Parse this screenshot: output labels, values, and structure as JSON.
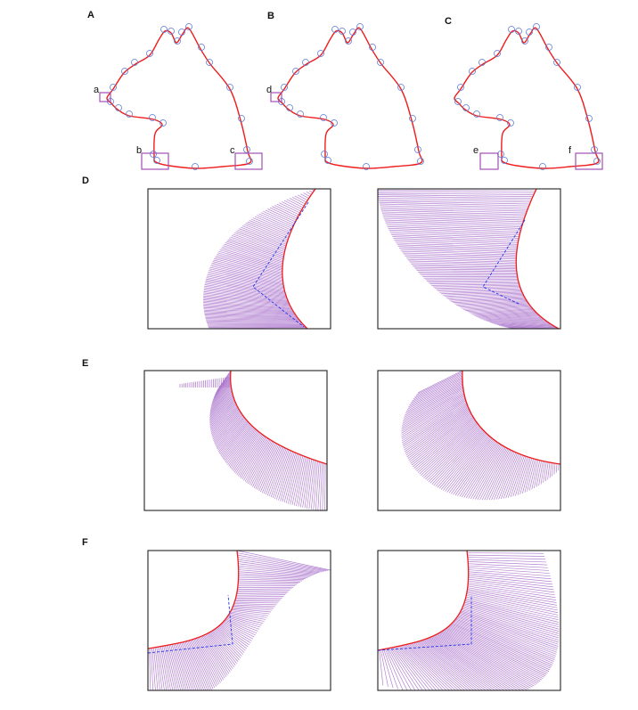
{
  "panel_labels": {
    "A": "A",
    "B": "B",
    "C": "C",
    "D": "D",
    "E": "E",
    "F": "F"
  },
  "region_labels": {
    "a": "a",
    "b": "b",
    "c": "c",
    "d": "d",
    "e": "e",
    "f": "f"
  },
  "colors": {
    "contour": "#ee1c1c",
    "control_points": "#5b7bd5",
    "region_box": "#a24fb3",
    "fan_lines": "#a66cc9",
    "dashed_skeleton": "#2233ee",
    "frame": "#222222"
  }
}
